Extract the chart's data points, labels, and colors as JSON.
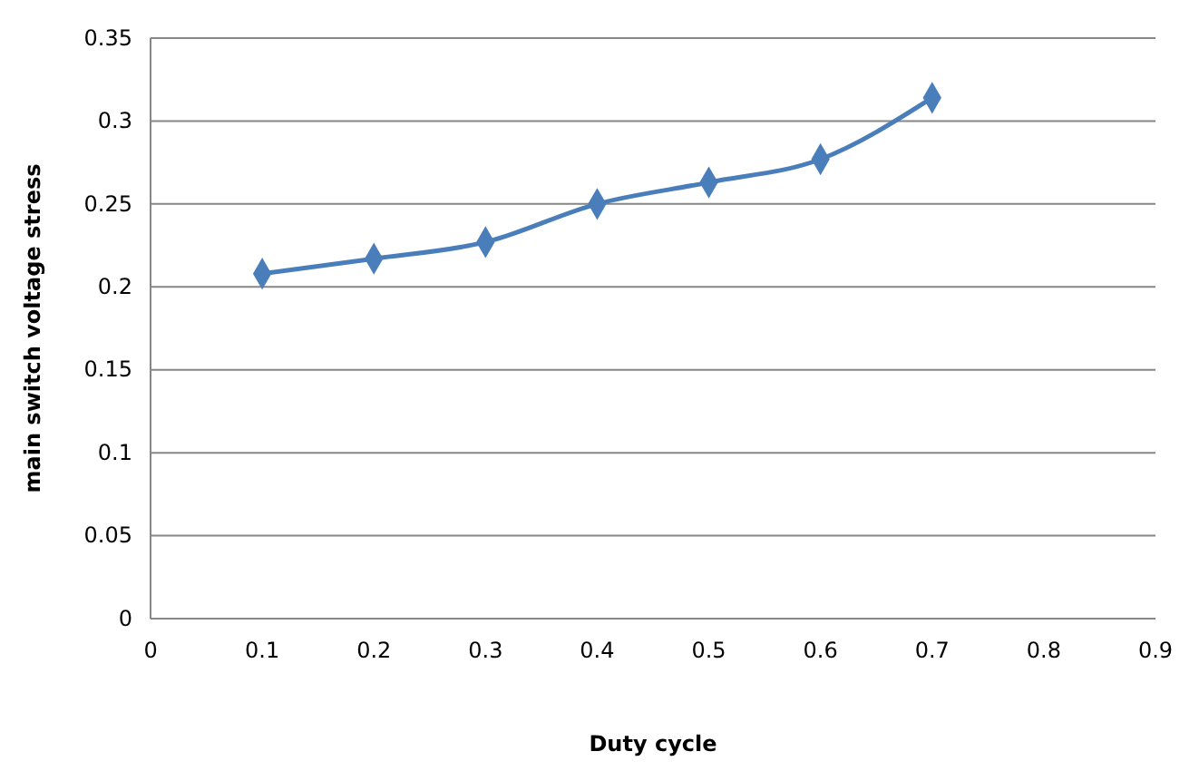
{
  "chart_data": {
    "type": "line",
    "xlabel": "Duty cycle",
    "ylabel": "main switch voltage stress",
    "x": [
      0.1,
      0.2,
      0.3,
      0.4,
      0.5,
      0.6,
      0.7
    ],
    "series": [
      {
        "color": "#4a7ebb",
        "values": [
          0.208,
          0.217,
          0.227,
          0.25,
          0.263,
          0.277,
          0.314
        ]
      }
    ],
    "xlim": [
      0,
      0.9
    ],
    "xticks": [
      0,
      0.1,
      0.2,
      0.3,
      0.4,
      0.5,
      0.6,
      0.7,
      0.8,
      0.9
    ],
    "ylim": [
      0,
      0.35
    ],
    "yticks": [
      0,
      0.05,
      0.1,
      0.15,
      0.2,
      0.25,
      0.3,
      0.35
    ],
    "grid": "y",
    "marker": "diamond",
    "line_style": "solid"
  }
}
